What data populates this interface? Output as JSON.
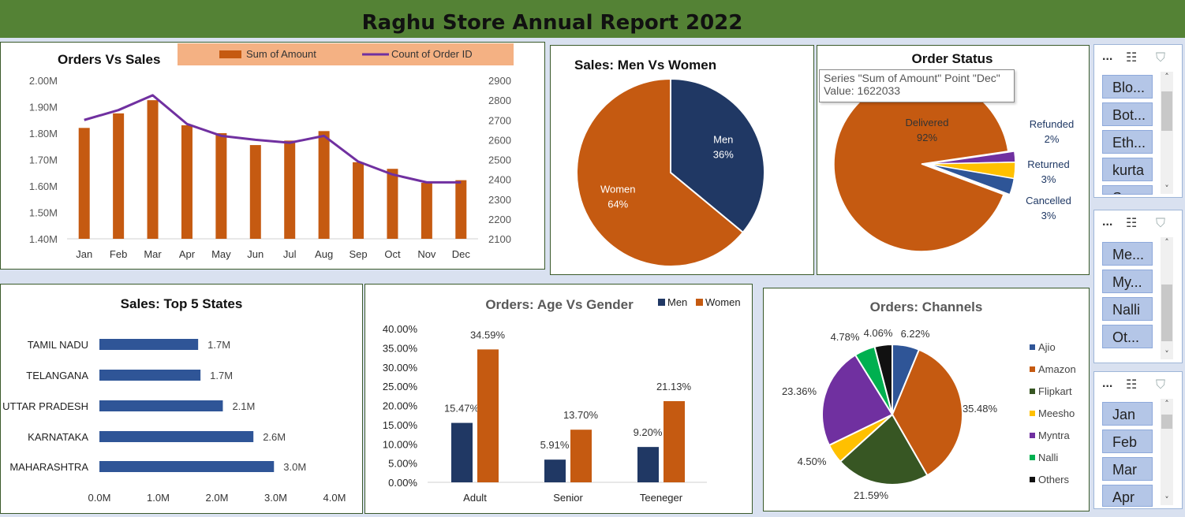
{
  "report_title": "Raghu Store Annual Report 2022",
  "colors": {
    "orange": "#c55a11",
    "navy": "#203864",
    "purple": "#7030a0",
    "blue": "#2f5597",
    "gold": "#ffc000",
    "dark_green": "#375623",
    "green": "#00b050",
    "black": "#111111",
    "blue_mid": "#2e5597"
  },
  "tooltip": {
    "line1": "Series \"Sum of Amount\" Point \"Dec\"",
    "line2": "Value: 1622033"
  },
  "slicers": [
    {
      "items": [
        "Blo...",
        "Bot...",
        "Eth...",
        "kurta",
        "Sar..."
      ]
    },
    {
      "items": [
        "Me...",
        "My...",
        "Nalli",
        "Ot..."
      ]
    },
    {
      "items": [
        "Jan",
        "Feb",
        "Mar",
        "Apr"
      ]
    }
  ],
  "slicer_icons": {
    "more": "...",
    "multi_select": "☷",
    "clear_filter": "⛉",
    "scroll_up": "˄",
    "scroll_down": "˅"
  },
  "chart_data": [
    {
      "type": "bar",
      "title": "Orders Vs Sales",
      "categories": [
        "Jan",
        "Feb",
        "Mar",
        "Apr",
        "May",
        "Jun",
        "Jul",
        "Aug",
        "Sep",
        "Oct",
        "Nov",
        "Dec"
      ],
      "series": [
        {
          "name": "Sum of Amount",
          "type": "bar",
          "axis": "left",
          "values": [
            1820000,
            1875000,
            1925000,
            1830000,
            1800000,
            1755000,
            1772000,
            1808000,
            1690000,
            1665000,
            1612000,
            1622033
          ]
        },
        {
          "name": "Count of Order ID",
          "type": "line",
          "axis": "right",
          "values": [
            2700,
            2750,
            2825,
            2680,
            2620,
            2600,
            2585,
            2620,
            2490,
            2425,
            2385,
            2385
          ]
        }
      ],
      "ylim": [
        1400000,
        2000000
      ],
      "yticks": [
        "1.40M",
        "1.50M",
        "1.60M",
        "1.70M",
        "1.80M",
        "1.90M",
        "2.00M"
      ],
      "y2lim": [
        2100,
        2900
      ],
      "y2ticks": [
        "2100",
        "2200",
        "2300",
        "2400",
        "2500",
        "2600",
        "2700",
        "2800",
        "2900"
      ],
      "legend": "top"
    },
    {
      "type": "pie",
      "title": "Sales: Men Vs Women",
      "labels": [
        "Men",
        "Women"
      ],
      "values": [
        36,
        64
      ],
      "value_labels": [
        "36%",
        "64%"
      ]
    },
    {
      "type": "pie",
      "title": "Order Status",
      "labels": [
        "Delivered",
        "Refunded",
        "Returned",
        "Cancelled"
      ],
      "values": [
        92,
        2,
        3,
        3
      ],
      "value_labels": [
        "92%",
        "2%",
        "3%",
        "3%"
      ]
    },
    {
      "type": "bar",
      "orientation": "horizontal",
      "title": "Sales: Top 5 States",
      "categories": [
        "TAMIL NADU",
        "TELANGANA",
        "UTTAR PRADESH",
        "KARNATAKA",
        "MAHARASHTRA"
      ],
      "values": [
        1.7,
        1.7,
        2.1,
        2.6,
        3.0
      ],
      "value_labels": [
        "1.7M",
        "1.7M",
        "2.1M",
        "2.6M",
        "3.0M"
      ],
      "bar_values": [
        1.68,
        1.72,
        2.1,
        2.62,
        2.97
      ],
      "xlim": [
        0,
        4
      ],
      "xticks": [
        "0.0M",
        "1.0M",
        "2.0M",
        "3.0M",
        "4.0M"
      ]
    },
    {
      "type": "bar",
      "title": "Orders: Age Vs Gender",
      "categories": [
        "Adult",
        "Senior",
        "Teeneger"
      ],
      "series": [
        {
          "name": "Men",
          "values": [
            15.47,
            5.91,
            9.2
          ],
          "value_labels": [
            "15.47%",
            "5.91%",
            "9.20%"
          ]
        },
        {
          "name": "Women",
          "values": [
            34.59,
            13.7,
            21.13
          ],
          "value_labels": [
            "34.59%",
            "13.70%",
            "21.13%"
          ]
        }
      ],
      "ylim": [
        0,
        40
      ],
      "yticks": [
        "0.00%",
        "5.00%",
        "10.00%",
        "15.00%",
        "20.00%",
        "25.00%",
        "30.00%",
        "35.00%",
        "40.00%"
      ],
      "legend": "top-right"
    },
    {
      "type": "pie",
      "title": "Orders: Channels",
      "labels": [
        "Ajio",
        "Amazon",
        "Flipkart",
        "Meesho",
        "Myntra",
        "Nalli",
        "Others"
      ],
      "values": [
        6.22,
        35.48,
        21.59,
        4.5,
        23.36,
        4.78,
        4.06
      ],
      "value_labels": [
        "6.22%",
        "35.48%",
        "21.59%",
        "4.50%",
        "23.36%",
        "4.78%",
        "4.06%"
      ],
      "legend": "right"
    }
  ]
}
